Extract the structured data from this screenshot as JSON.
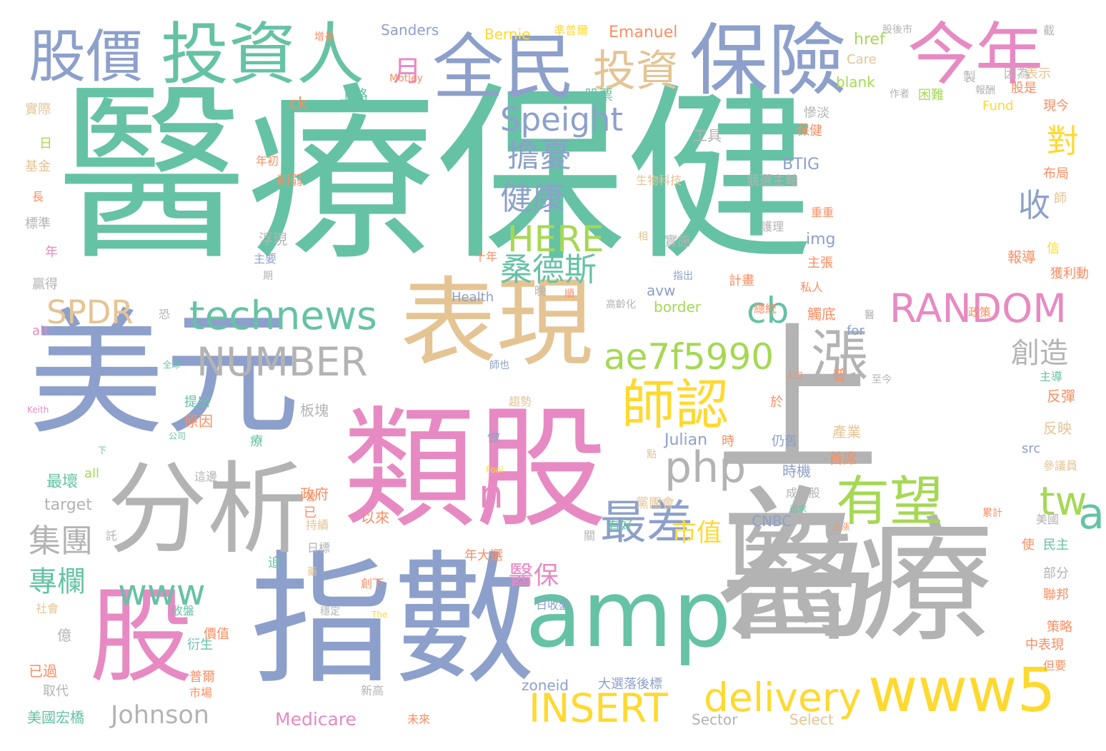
{
  "colors": {
    "teal": "#66c2a5",
    "blue": "#8da0cb",
    "gray": "#b3b3b3",
    "tan": "#e5c494",
    "pink": "#e78ac3",
    "yellow": "#ffd92f",
    "green": "#a6d854",
    "orange": "#fc8d62"
  },
  "words": [
    "醫療保健",
    "美元",
    "上為",
    "指數",
    "類股",
    "表現",
    "醫療",
    "分析",
    "amp",
    "股",
    "保險",
    "全民",
    "今年",
    "投資人",
    "股價",
    "漲",
    "師認",
    "有望",
    "投資",
    "最差",
    "www5",
    "php",
    "delivery",
    "INSERT",
    "technews",
    "NUMBER",
    "RANDOM",
    "ae7f5990",
    "HERE",
    "Speight",
    "擔憂",
    "健康",
    "桑德斯",
    "SPDR",
    "cb",
    "a",
    "tw",
    "n",
    "www",
    "集團",
    "專欄",
    "對",
    "收",
    "月",
    "市值",
    "醫保",
    "創造",
    "Johnson",
    "Medicare",
    "zoneid",
    "Sanders",
    "Bernie",
    "準普爾",
    "Emanuel",
    "href",
    "Care",
    "blank",
    "Fund",
    "BTIG",
    "img",
    "border",
    "avw",
    "Health",
    "Julian",
    "CNBC",
    "for",
    "src",
    "all",
    "target",
    "alt",
    "Keith",
    "Fool",
    "Motley",
    "The",
    "Sector",
    "Select",
    "工具",
    "股票",
    "上路",
    "ck",
    "實際",
    "基金",
    "標準",
    "贏得",
    "浮現",
    "主要",
    "生物科技",
    "競選主軸",
    "實施",
    "護理",
    "主張",
    "私人",
    "報導",
    "觸底",
    "時機",
    "仍舊",
    "產業",
    "首席",
    "政策",
    "板塊",
    "原因",
    "提出",
    "最壞",
    "政府",
    "以來",
    "年大選",
    "部分",
    "民主",
    "聯邦",
    "策略",
    "中表現",
    "但要",
    "反彈",
    "反映",
    "參議員",
    "美國",
    "累計",
    "看好",
    "黨團會",
    "成分股",
    "大選落後標",
    "美國宏橋",
    "普爾",
    "市場",
    "衍生",
    "億",
    "已過",
    "取代",
    "新高",
    "未來",
    "創下",
    "穩定",
    "收盤",
    "日收盤",
    "價值",
    "社會",
    "日標",
    "持續",
    "追",
    "藥",
    "表示",
    "因為",
    "現今",
    "困難",
    "作者",
    "報酬",
    "製",
    "股是",
    "慘淡",
    "保健",
    "布局",
    "師",
    "信",
    "獲利動",
    "總統",
    "重重",
    "計畫",
    "高齡化",
    "人口",
    "至今",
    "趨勢",
    "師也",
    "做",
    "公司",
    "下",
    "這邊",
    "全球",
    "恐",
    "期",
    "晚",
    "順",
    "指出",
    "十年",
    "相",
    "削弱",
    "年初",
    "增長",
    "長",
    "年",
    "日",
    "點",
    "療",
    "於",
    "時",
    "主導",
    "上漲",
    "追求",
    "使",
    "已",
    "關",
    "託",
    "醫",
    "營",
    "截",
    "普",
    "股後市",
    "蘇",
    "度"
  ]
}
